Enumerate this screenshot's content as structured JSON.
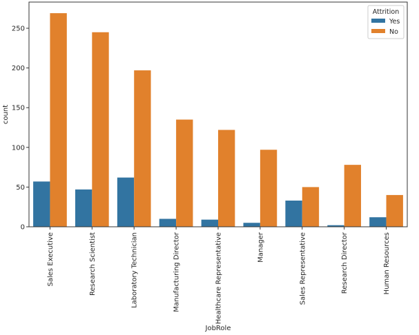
{
  "chart_data": {
    "type": "bar",
    "title": "",
    "xlabel": "JobRole",
    "ylabel": "count",
    "ylim": [
      0,
      285
    ],
    "yticks": [
      0,
      50,
      100,
      150,
      200,
      250
    ],
    "categories": [
      "Sales Executive",
      "Research Scientist",
      "Laboratory Technician",
      "Manufacturing Director",
      "Healthcare Representative",
      "Manager",
      "Sales Representative",
      "Research Director",
      "Human Resources"
    ],
    "series": [
      {
        "name": "Yes",
        "color": "#3274a1",
        "values": [
          57,
          47,
          62,
          10,
          9,
          5,
          33,
          2,
          12
        ]
      },
      {
        "name": "No",
        "color": "#e1812c",
        "values": [
          269,
          245,
          197,
          135,
          122,
          97,
          50,
          78,
          40
        ]
      }
    ],
    "legend": {
      "title": "Attrition",
      "placement": "top-right"
    },
    "grid": false
  }
}
